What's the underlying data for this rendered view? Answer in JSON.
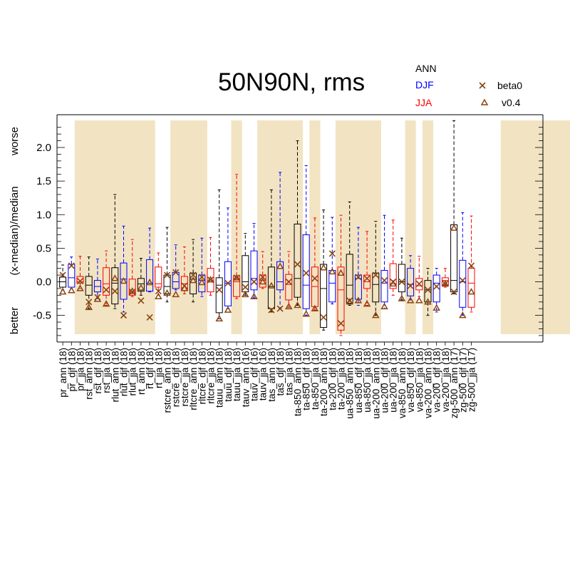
{
  "chart_data": {
    "type": "box",
    "title": "50N90N, rms",
    "ylabel": "(x-median)/median",
    "ylabel_better": "better",
    "ylabel_worse": "worse",
    "ylim": [
      -0.85,
      2.4
    ],
    "yticks": [
      "-0.5",
      "0.0",
      "0.5",
      "1.0",
      "1.5",
      "2.0"
    ],
    "ytick_values": [
      -0.5,
      0.0,
      0.5,
      1.0,
      1.5,
      2.0
    ],
    "season_legend": [
      {
        "label": "ANN",
        "color": "#000000"
      },
      {
        "label": "DJF",
        "color": "#0000ff"
      },
      {
        "label": "JJA",
        "color": "#ff0000"
      }
    ],
    "marker_legend": [
      {
        "label": "beta0",
        "marker": "cross",
        "color": "#8b4513"
      },
      {
        "label": "v0.4",
        "marker": "triangle",
        "color": "#8b4513"
      }
    ],
    "shade_color": "#f2e4c2",
    "shaded_spans": [
      [
        2,
        10
      ],
      [
        13,
        16
      ],
      [
        20,
        20
      ],
      [
        23,
        27
      ],
      [
        29,
        29
      ],
      [
        32,
        36
      ],
      [
        40,
        40
      ],
      [
        42,
        42
      ],
      [
        51,
        58
      ]
    ],
    "boxes": [
      {
        "label": "pr_ann (18)",
        "season": "ANN",
        "whisker_low": -0.12,
        "q1": -0.08,
        "median": 0.0,
        "q3": 0.07,
        "whisker_high": 0.25,
        "cross": 0.1,
        "triangle": -0.15
      },
      {
        "label": "pr_djf (18)",
        "season": "DJF",
        "whisker_low": -0.1,
        "q1": -0.08,
        "median": 0.06,
        "q3": 0.26,
        "whisker_high": 0.37,
        "cross": 0.24,
        "triangle": -0.13
      },
      {
        "label": "pr_jja (18)",
        "season": "JJA",
        "whisker_low": -0.1,
        "q1": -0.02,
        "median": 0.0,
        "q3": 0.08,
        "whisker_high": 0.38,
        "cross": 0.01,
        "triangle": -0.1
      },
      {
        "label": "rst_ann (18)",
        "season": "ANN",
        "whisker_low": -0.4,
        "q1": -0.2,
        "median": -0.05,
        "q3": 0.08,
        "whisker_high": 0.37,
        "cross": -0.3,
        "triangle": -0.38
      },
      {
        "label": "rst_djf (18)",
        "season": "DJF",
        "whisker_low": -0.25,
        "q1": -0.15,
        "median": -0.07,
        "q3": 0.02,
        "whisker_high": 0.34,
        "cross": -0.23,
        "triangle": -0.26
      },
      {
        "label": "rst_jja (18)",
        "season": "JJA",
        "whisker_low": -0.35,
        "q1": -0.2,
        "median": -0.03,
        "q3": 0.21,
        "whisker_high": 0.46,
        "cross": -0.12,
        "triangle": -0.33
      },
      {
        "label": "rlut_ann (18)",
        "season": "ANN",
        "whisker_low": -0.4,
        "q1": -0.33,
        "median": -0.02,
        "q3": 0.21,
        "whisker_high": 1.3,
        "cross": -0.14,
        "triangle": 0.05
      },
      {
        "label": "rlut_djf (18)",
        "season": "DJF",
        "whisker_low": -0.45,
        "q1": -0.26,
        "median": 0.04,
        "q3": 0.28,
        "whisker_high": 0.83,
        "cross": -0.5,
        "triangle": 0.01
      },
      {
        "label": "rlut_jja (18)",
        "season": "JJA",
        "whisker_low": -0.22,
        "q1": -0.2,
        "median": -0.14,
        "q3": 0.04,
        "whisker_high": 0.63,
        "cross": -0.15,
        "triangle": -0.14
      },
      {
        "label": "rt_ann (18)",
        "season": "ANN",
        "whisker_low": -0.2,
        "q1": -0.14,
        "median": -0.03,
        "q3": 0.05,
        "whisker_high": 0.35,
        "cross": -0.28,
        "triangle": -0.09
      },
      {
        "label": "rt_djf (18)",
        "season": "DJF",
        "whisker_low": -0.15,
        "q1": -0.14,
        "median": -0.02,
        "q3": 0.33,
        "whisker_high": 0.8,
        "cross": -0.53,
        "triangle": -0.01
      },
      {
        "label": "rt_jja (18)",
        "season": "JJA",
        "whisker_low": -0.2,
        "q1": -0.08,
        "median": -0.03,
        "q3": 0.22,
        "whisker_high": 0.43,
        "cross": -0.14,
        "triangle": -0.22
      },
      {
        "label": "rstcre_ann (18)",
        "season": "ANN",
        "whisker_low": -0.3,
        "q1": -0.18,
        "median": -0.07,
        "q3": 0.1,
        "whisker_high": 0.81,
        "cross": 0.1,
        "triangle": -0.17
      },
      {
        "label": "rstcre_djf (18)",
        "season": "DJF",
        "whisker_low": -0.12,
        "q1": -0.1,
        "median": 0.0,
        "q3": 0.14,
        "whisker_high": 0.55,
        "cross": 0.14,
        "triangle": -0.19
      },
      {
        "label": "rstcre_jja (18)",
        "season": "JJA",
        "whisker_low": -0.18,
        "q1": -0.13,
        "median": -0.03,
        "q3": 0.08,
        "whisker_high": 0.52,
        "cross": -0.06,
        "triangle": -0.1
      },
      {
        "label": "rltcre_ann (18)",
        "season": "ANN",
        "whisker_low": -0.3,
        "q1": -0.18,
        "median": 0.04,
        "q3": 0.13,
        "whisker_high": 0.63,
        "cross": 0.1,
        "triangle": 0.02
      },
      {
        "label": "rltcre_djf (18)",
        "season": "DJF",
        "whisker_low": -0.22,
        "q1": -0.15,
        "median": 0.02,
        "q3": 0.1,
        "whisker_high": 0.65,
        "cross": 0.07,
        "triangle": -0.01
      },
      {
        "label": "rltcre_jja (18)",
        "season": "JJA",
        "whisker_low": -0.2,
        "q1": -0.15,
        "median": 0.0,
        "q3": 0.2,
        "whisker_high": 0.66,
        "cross": 0.03,
        "triangle": 0.03
      },
      {
        "label": "tauu_ann (18)",
        "season": "ANN",
        "whisker_low": -0.55,
        "q1": -0.46,
        "median": -0.05,
        "q3": 0.06,
        "whisker_high": 1.37,
        "cross": -0.12,
        "triangle": -0.55
      },
      {
        "label": "tauu_djf (18)",
        "season": "DJF",
        "whisker_low": -0.4,
        "q1": -0.36,
        "median": -0.02,
        "q3": 0.3,
        "whisker_high": 1.1,
        "cross": -0.02,
        "triangle": -0.42
      },
      {
        "label": "tauu_jja (18)",
        "season": "JJA",
        "whisker_low": -0.25,
        "q1": -0.22,
        "median": 0.0,
        "q3": 0.09,
        "whisker_high": 1.6,
        "cross": 0.06,
        "triangle": 0.06
      },
      {
        "label": "tauv_ann (16)",
        "season": "ANN",
        "whisker_low": -0.2,
        "q1": -0.15,
        "median": 0.0,
        "q3": 0.39,
        "whisker_high": 0.72,
        "cross": -0.08,
        "triangle": -0.19
      },
      {
        "label": "tauv_djf (16)",
        "season": "DJF",
        "whisker_low": -0.24,
        "q1": -0.12,
        "median": 0.05,
        "q3": 0.46,
        "whisker_high": 0.87,
        "cross": 0.0,
        "triangle": -0.22
      },
      {
        "label": "tauv_jja (16)",
        "season": "JJA",
        "whisker_low": -0.1,
        "q1": -0.08,
        "median": 0.02,
        "q3": 0.1,
        "whisker_high": 0.45,
        "cross": 0.07,
        "triangle": 0.0
      },
      {
        "label": "tas_ann (18)",
        "season": "ANN",
        "whisker_low": -0.45,
        "q1": -0.4,
        "median": -0.07,
        "q3": 0.22,
        "whisker_high": 1.37,
        "cross": -0.42,
        "triangle": -0.06
      },
      {
        "label": "tas_djf (18)",
        "season": "DJF",
        "whisker_low": -0.4,
        "q1": -0.12,
        "median": 0.0,
        "q3": 0.3,
        "whisker_high": 1.63,
        "cross": -0.4,
        "triangle": 0.23
      },
      {
        "label": "tas_jja (18)",
        "season": "JJA",
        "whisker_low": -0.38,
        "q1": -0.27,
        "median": -0.04,
        "q3": 0.11,
        "whisker_high": 0.45,
        "cross": 0.0,
        "triangle": -0.37
      },
      {
        "label": "ta-850_ann (18)",
        "season": "ANN",
        "whisker_low": -0.35,
        "q1": -0.23,
        "median": 0.05,
        "q3": 0.86,
        "whisker_high": 2.1,
        "cross": 0.26,
        "triangle": -0.35
      },
      {
        "label": "ta-850_djf (18)",
        "season": "DJF",
        "whisker_low": -0.5,
        "q1": -0.4,
        "median": -0.05,
        "q3": 0.7,
        "whisker_high": 1.73,
        "cross": 0.13,
        "triangle": -0.48
      },
      {
        "label": "ta-850_jja (18)",
        "season": "JJA",
        "whisker_low": -0.42,
        "q1": -0.37,
        "median": -0.07,
        "q3": 0.22,
        "whisker_high": 0.95,
        "cross": 0.05,
        "triangle": -0.4
      },
      {
        "label": "ta-200_ann (18)",
        "season": "ANN",
        "whisker_low": -0.72,
        "q1": -0.68,
        "median": -0.1,
        "q3": 0.26,
        "whisker_high": 1.07,
        "cross": -0.53,
        "triangle": 0.21
      },
      {
        "label": "ta-200_djf (18)",
        "season": "DJF",
        "whisker_low": -0.33,
        "q1": -0.3,
        "median": -0.02,
        "q3": 0.17,
        "whisker_high": 0.96,
        "cross": 0.42,
        "triangle": 0.15
      },
      {
        "label": "ta-200_jja (18)",
        "season": "JJA",
        "whisker_low": -0.8,
        "q1": -0.72,
        "median": -0.12,
        "q3": 0.22,
        "whisker_high": 0.99,
        "cross": -0.62,
        "triangle": 0.13
      },
      {
        "label": "ua-850_ann (18)",
        "season": "ANN",
        "whisker_low": -0.35,
        "q1": -0.32,
        "median": -0.05,
        "q3": 0.41,
        "whisker_high": 1.19,
        "cross": -0.28,
        "triangle": -0.3
      },
      {
        "label": "ua-850_djf (18)",
        "season": "DJF",
        "whisker_low": -0.35,
        "q1": -0.26,
        "median": 0.05,
        "q3": 0.1,
        "whisker_high": 0.81,
        "cross": 0.07,
        "triangle": -0.28
      },
      {
        "label": "ua-850_jja (18)",
        "season": "JJA",
        "whisker_low": -0.35,
        "q1": -0.1,
        "median": 0.0,
        "q3": 0.1,
        "whisker_high": 0.75,
        "cross": 0.05,
        "triangle": -0.33
      },
      {
        "label": "ua-200_ann (18)",
        "season": "ANN",
        "whisker_low": -0.5,
        "q1": -0.3,
        "median": -0.04,
        "q3": 0.13,
        "whisker_high": 0.9,
        "cross": 0.1,
        "triangle": -0.5
      },
      {
        "label": "ua-200_djf (18)",
        "season": "DJF",
        "whisker_low": -0.4,
        "q1": -0.3,
        "median": -0.02,
        "q3": 0.17,
        "whisker_high": 0.99,
        "cross": 0.02,
        "triangle": -0.37
      },
      {
        "label": "ua-200_jja (18)",
        "season": "JJA",
        "whisker_low": -0.2,
        "q1": -0.1,
        "median": -0.03,
        "q3": 0.27,
        "whisker_high": 0.92,
        "cross": 0.0,
        "triangle": -0.03
      },
      {
        "label": "va-850_ann (18)",
        "season": "ANN",
        "whisker_low": -0.27,
        "q1": -0.15,
        "median": 0.0,
        "q3": 0.26,
        "whisker_high": 0.65,
        "cross": 0.0,
        "triangle": -0.25
      },
      {
        "label": "va-850_djf (18)",
        "season": "DJF",
        "whisker_low": -0.27,
        "q1": -0.21,
        "median": -0.04,
        "q3": 0.2,
        "whisker_high": 0.39,
        "cross": -0.06,
        "triangle": -0.28
      },
      {
        "label": "va-850_jja (18)",
        "season": "JJA",
        "whisker_low": -0.22,
        "q1": -0.12,
        "median": -0.06,
        "q3": 0.05,
        "whisker_high": 0.38,
        "cross": -0.03,
        "triangle": -0.28
      },
      {
        "label": "va-200_ann (18)",
        "season": "ANN",
        "whisker_low": -0.5,
        "q1": -0.3,
        "median": -0.12,
        "q3": 0.02,
        "whisker_high": 0.2,
        "cross": -0.12,
        "triangle": -0.3
      },
      {
        "label": "va-200_djf (18)",
        "season": "DJF",
        "whisker_low": -0.45,
        "q1": -0.3,
        "median": -0.02,
        "q3": 0.1,
        "whisker_high": 0.2,
        "cross": -0.07,
        "triangle": -0.39
      },
      {
        "label": "va-200_jja (18)",
        "season": "JJA",
        "whisker_low": -0.08,
        "q1": -0.05,
        "median": 0.02,
        "q3": 0.06,
        "whisker_high": 0.2,
        "cross": -0.03,
        "triangle": -0.03
      },
      {
        "label": "zg-500_ann (17)",
        "season": "ANN",
        "whisker_low": -0.18,
        "q1": -0.15,
        "median": 0.02,
        "q3": 0.85,
        "whisker_high": 2.4,
        "cross": -0.15,
        "triangle": 0.8
      },
      {
        "label": "zg-500_djf (17)",
        "season": "DJF",
        "whisker_low": -0.5,
        "q1": -0.38,
        "median": 0.0,
        "q3": 0.32,
        "whisker_high": 1.03,
        "cross": 0.02,
        "triangle": -0.5
      },
      {
        "label": "zg-500_jja (17)",
        "season": "JJA",
        "whisker_low": -0.45,
        "q1": -0.38,
        "median": -0.02,
        "q3": 0.2,
        "whisker_high": 0.98,
        "cross": 0.24,
        "triangle": -0.15
      }
    ]
  }
}
